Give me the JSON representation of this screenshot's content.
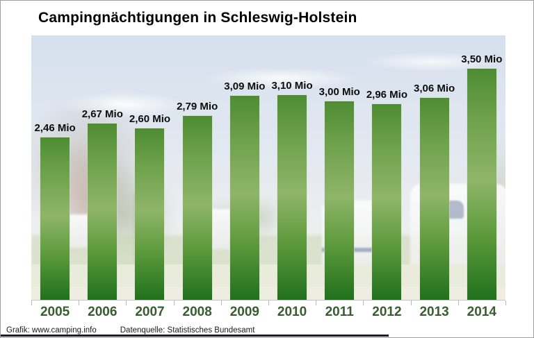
{
  "title": "Campingnächtigungen in Schleswig-Holstein",
  "footer": {
    "credit": "Grafik: www.camping.info",
    "source": "Datenquelle: Statistisches Bundesamt"
  },
  "chart_data": {
    "type": "bar",
    "title": "Campingnächtigungen in Schleswig-Holstein",
    "categories": [
      "2005",
      "2006",
      "2007",
      "2008",
      "2009",
      "2010",
      "2011",
      "2012",
      "2013",
      "2014"
    ],
    "values": [
      2.46,
      2.67,
      2.6,
      2.79,
      3.09,
      3.1,
      3.0,
      2.96,
      3.06,
      3.5
    ],
    "value_labels": [
      "2,46 Mio",
      "2,67 Mio",
      "2,60 Mio",
      "2,79 Mio",
      "3,09 Mio",
      "3,10 Mio",
      "3,00 Mio",
      "2,96 Mio",
      "3,06 Mio",
      "3,50 Mio"
    ],
    "unit": "Mio",
    "xlabel": "",
    "ylabel": "",
    "ylim": [
      0,
      4.0
    ],
    "grid": false,
    "legend": "none",
    "background": "faded photo of a campsite with caravans, trees and lawn",
    "colors": {
      "bar_top": "#4e8c33",
      "bar_mid": "#8fb569",
      "bar_bottom": "#20701c",
      "year_label": "#3a5c31",
      "value_label": "#0d0d0d",
      "sky": "#cbd9ea"
    }
  }
}
